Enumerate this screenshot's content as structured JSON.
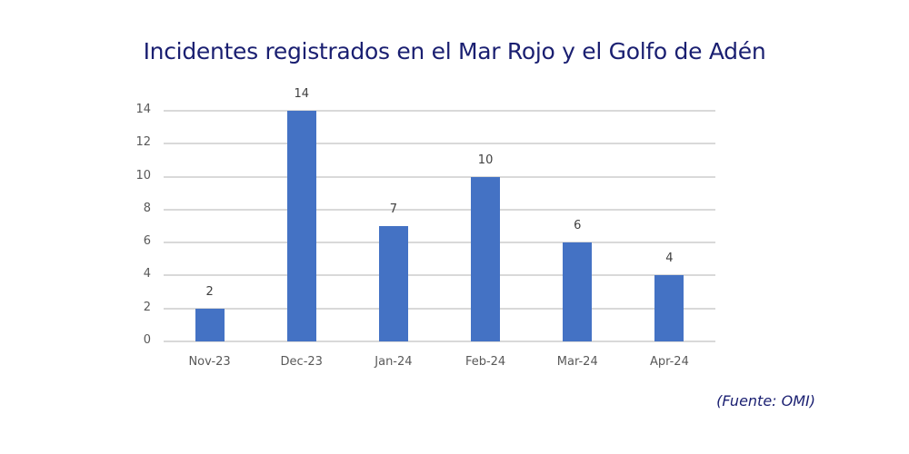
{
  "chart_data": {
    "type": "bar",
    "title": "Incidentes registrados en el Mar Rojo y el Golfo de Adén",
    "categories": [
      "Nov-23",
      "Dec-23",
      "Jan-24",
      "Feb-24",
      "Mar-24",
      "Apr-24"
    ],
    "values": [
      2,
      14,
      7,
      10,
      6,
      4
    ],
    "data_labels": [
      "2",
      "14",
      "7",
      "10",
      "6",
      "4"
    ],
    "xlabel": "",
    "ylabel": "",
    "ylim": [
      0,
      14
    ],
    "yticks": [
      "0",
      "2",
      "4",
      "6",
      "8",
      "10",
      "12",
      "14"
    ],
    "grid": true,
    "legend": null,
    "bar_color": "#4472c4",
    "source": "(Fuente: OMI)"
  },
  "title": "Incidentes registrados en el Mar Rojo y el Golfo de Adén",
  "source": "(Fuente: OMI)"
}
